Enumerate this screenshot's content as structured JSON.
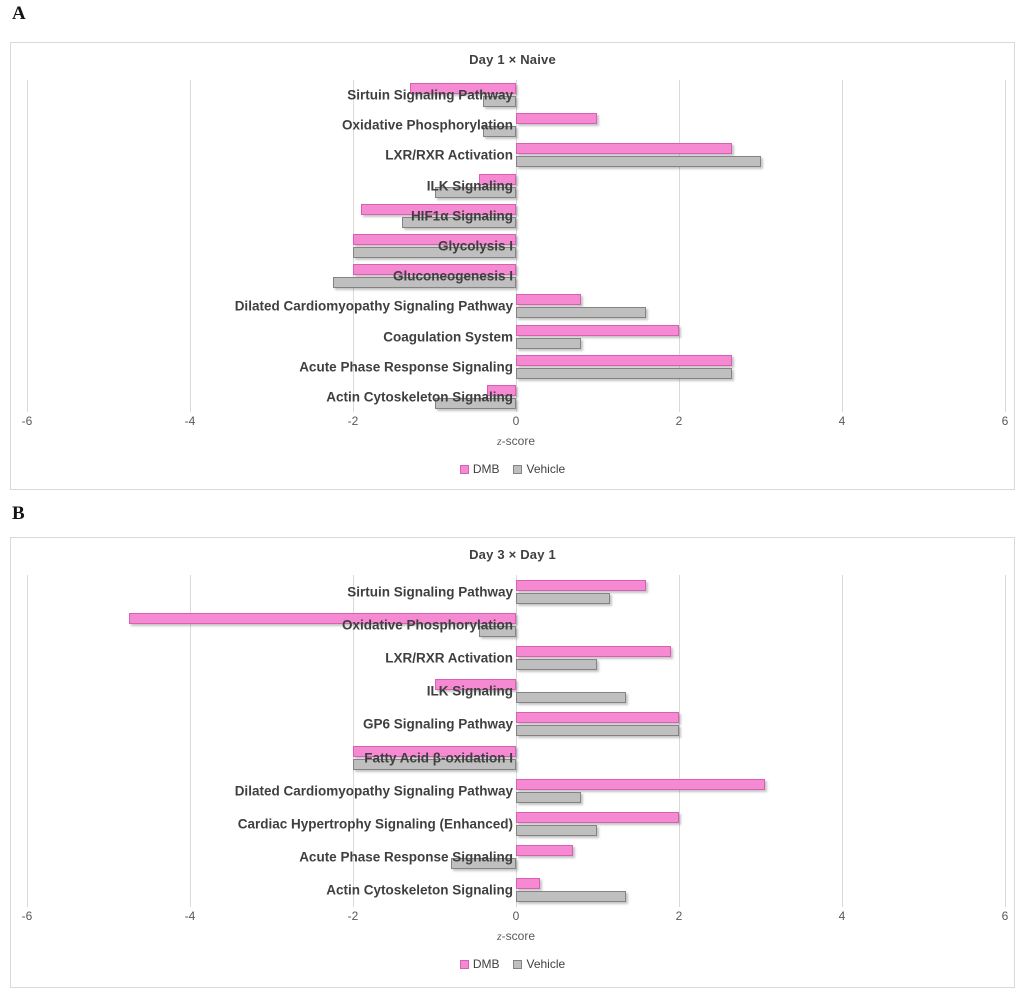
{
  "page": {
    "panel_a_label": "A",
    "panel_b_label": "B"
  },
  "colors": {
    "dmb_fill": "#f58ad3",
    "dmb_border": "#d95fb4",
    "vehicle_fill": "#bfbfbf",
    "vehicle_border": "#838383",
    "gridline": "#d9d9d9",
    "text_dark": "#404040",
    "text_axis": "#595959"
  },
  "chart_data": [
    {
      "type": "bar",
      "orientation": "horizontal",
      "title": "Day 1 × Naive",
      "xlabel": "z-score",
      "xlim": [
        -6,
        6
      ],
      "xticks": [
        -6,
        -4,
        -2,
        0,
        2,
        4,
        6
      ],
      "grid": "vertical",
      "legend_position": "bottom",
      "categories": [
        "Sirtuin Signaling Pathway",
        "Oxidative Phosphorylation",
        "LXR/RXR Activation",
        "ILK Signaling",
        "HIF1α Signaling",
        "Glycolysis I",
        "Gluconeogenesis I",
        "Dilated Cardiomyopathy Signaling Pathway",
        "Coagulation System",
        "Acute Phase Response Signaling",
        "Actin Cytoskeleton Signaling"
      ],
      "series": [
        {
          "name": "DMB",
          "color": "#f58ad3",
          "border": "#d95fb4",
          "values": [
            -1.3,
            1.0,
            2.65,
            -0.45,
            -1.9,
            -2.0,
            -2.0,
            0.8,
            2.0,
            2.65,
            -0.35
          ]
        },
        {
          "name": "Vehicle",
          "color": "#bfbfbf",
          "border": "#838383",
          "values": [
            -0.4,
            -0.4,
            3.0,
            -1.0,
            -1.4,
            -2.0,
            -2.25,
            1.6,
            0.8,
            2.65,
            -1.0
          ]
        }
      ]
    },
    {
      "type": "bar",
      "orientation": "horizontal",
      "title": "Day 3 × Day 1",
      "xlabel": "z-score",
      "xlim": [
        -6,
        6
      ],
      "xticks": [
        -6,
        -4,
        -2,
        0,
        2,
        4,
        6
      ],
      "grid": "vertical",
      "legend_position": "bottom",
      "categories": [
        "Sirtuin Signaling Pathway",
        "Oxidative Phosphorylation",
        "LXR/RXR Activation",
        "ILK Signaling",
        "GP6 Signaling Pathway",
        "Fatty Acid β-oxidation I",
        "Dilated Cardiomyopathy Signaling Pathway",
        "Cardiac Hypertrophy Signaling (Enhanced)",
        "Acute Phase Response Signaling",
        "Actin Cytoskeleton Signaling"
      ],
      "series": [
        {
          "name": "DMB",
          "color": "#f58ad3",
          "border": "#d95fb4",
          "values": [
            1.6,
            -4.75,
            1.9,
            -1.0,
            2.0,
            -2.0,
            3.05,
            2.0,
            0.7,
            0.3
          ]
        },
        {
          "name": "Vehicle",
          "color": "#bfbfbf",
          "border": "#838383",
          "values": [
            1.15,
            -0.45,
            1.0,
            1.35,
            2.0,
            -2.0,
            0.8,
            1.0,
            -0.8,
            1.35
          ]
        }
      ]
    }
  ]
}
